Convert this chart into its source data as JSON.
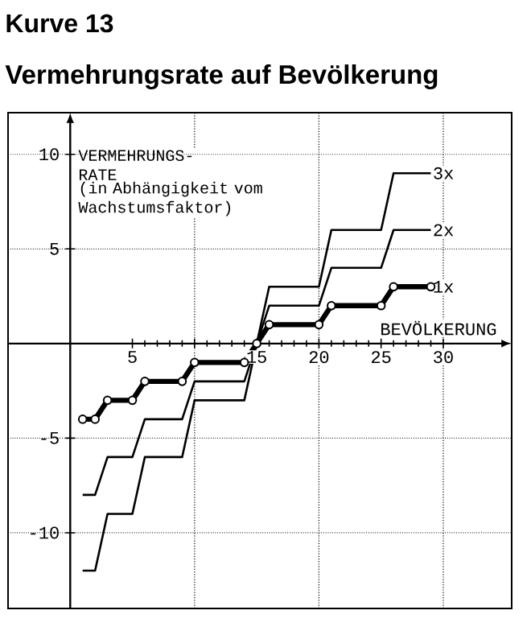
{
  "chart_data": {
    "type": "line",
    "title": "Kurve 13",
    "subtitle": "Vermehrungsrate auf Bevölkerung",
    "xlabel": "BEVÖLKERUNG",
    "ylabel": "VERMEHRUNGS-RATE",
    "annotations": [
      "(in Abhängigkeit vom Wachstumsfaktor)"
    ],
    "xlim": [
      -5,
      35.5
    ],
    "ylim": [
      -14,
      12.2
    ],
    "xticks": [
      5,
      {
        "value": 10,
        "label": null
      },
      15,
      20,
      25,
      30
    ],
    "yticks": [
      -10,
      -5,
      5,
      10
    ],
    "grid": "y",
    "line_style": "solid",
    "ref_lines": [
      {
        "axis": "x",
        "value": 10,
        "line_style": "dotted"
      },
      {
        "axis": "x",
        "value": 20,
        "line_style": "dotted"
      },
      {
        "axis": "x",
        "value": 30,
        "line_style": "dotted"
      }
    ],
    "series": [
      {
        "name": "3x",
        "color": "#000000",
        "x": [
          1,
          2,
          3,
          5,
          6,
          9,
          10,
          14,
          15,
          16,
          20,
          21,
          25,
          26,
          29
        ],
        "values": [
          -12,
          -12,
          -9,
          -9,
          -6,
          -6,
          -3,
          -3,
          0,
          3,
          3,
          6,
          6,
          9,
          9
        ]
      },
      {
        "name": "2x",
        "color": "#000000",
        "x": [
          1,
          2,
          3,
          5,
          6,
          9,
          10,
          14,
          15,
          16,
          20,
          21,
          25,
          26,
          29
        ],
        "values": [
          -8,
          -8,
          -6,
          -6,
          -4,
          -4,
          -2,
          -2,
          0,
          2,
          2,
          4,
          4,
          6,
          6
        ]
      },
      {
        "name": "1x",
        "color": "#000000",
        "marker": "circle",
        "x": [
          1,
          2,
          3,
          5,
          6,
          9,
          10,
          14,
          15,
          16,
          20,
          21,
          25,
          26,
          29
        ],
        "values": [
          -4,
          -4,
          -3,
          -3,
          -2,
          -2,
          -1,
          -1,
          0,
          1,
          1,
          2,
          2,
          3,
          3
        ]
      }
    ]
  }
}
